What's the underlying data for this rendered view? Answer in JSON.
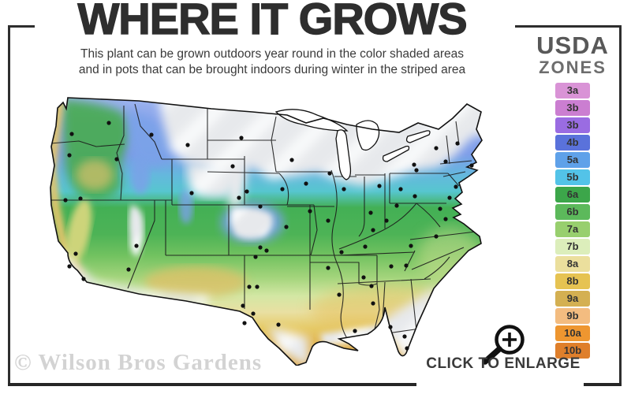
{
  "header": {
    "title": "WHERE IT GROWS",
    "subtitle_line1": "This plant can be grown outdoors year round in the color shaded areas",
    "subtitle_line2": "and in pots that can be brought indoors during winter in the striped area"
  },
  "legend": {
    "heading_line1": "USDA",
    "heading_line2": "ZONES",
    "zones": [
      {
        "label": "3a",
        "color": "#d993d6"
      },
      {
        "label": "3b",
        "color": "#cb7ed1"
      },
      {
        "label": "3b",
        "color": "#9a6ce2"
      },
      {
        "label": "4b",
        "color": "#5a72db"
      },
      {
        "label": "5a",
        "color": "#5fa1e9"
      },
      {
        "label": "5b",
        "color": "#53c3e8"
      },
      {
        "label": "6a",
        "color": "#3ca64a"
      },
      {
        "label": "6b",
        "color": "#5cb95b"
      },
      {
        "label": "7a",
        "color": "#98cf6e"
      },
      {
        "label": "7b",
        "color": "#dceebb"
      },
      {
        "label": "8a",
        "color": "#ebdf9d"
      },
      {
        "label": "8b",
        "color": "#e6c352"
      },
      {
        "label": "9a",
        "color": "#d4b052"
      },
      {
        "label": "9b",
        "color": "#f3bc80"
      },
      {
        "label": "10a",
        "color": "#ee9630"
      },
      {
        "label": "10b",
        "color": "#df7f2b"
      }
    ]
  },
  "map": {
    "kind": "usda-hardiness-zone-map",
    "region_shown": "Continental United States",
    "markers": "city-dots"
  },
  "footer": {
    "watermark": "© Wilson Bros Gardens",
    "enlarge_label": "CLICK TO ENLARGE"
  }
}
